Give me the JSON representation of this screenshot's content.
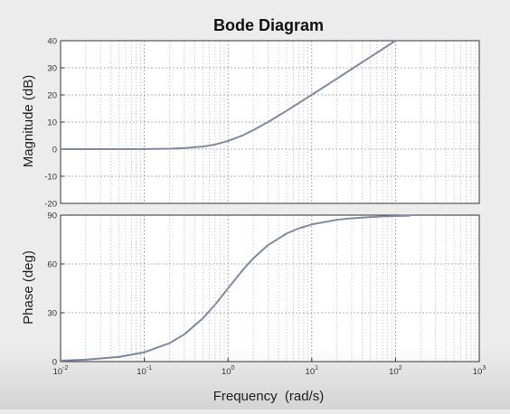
{
  "chart_data": [
    {
      "type": "line",
      "title": "Bode Diagram",
      "xlabel": "",
      "ylabel": "Magnitude (dB)",
      "xscale": "log",
      "xlim": [
        0.01,
        1000
      ],
      "ylim": [
        -20,
        40
      ],
      "yticks": [
        -20,
        -10,
        0,
        10,
        20,
        30,
        40
      ],
      "grid": true,
      "series": [
        {
          "color": "#7e8aa6",
          "x": [
            0.01,
            0.02,
            0.05,
            0.1,
            0.2,
            0.3,
            0.5,
            0.7,
            1,
            1.5,
            2,
            3,
            5,
            7,
            10,
            20,
            30,
            50,
            70,
            100
          ],
          "y": [
            0.0,
            0.0,
            0.01,
            0.04,
            0.17,
            0.37,
            0.97,
            1.72,
            3.01,
            5.12,
            6.99,
            10.0,
            14.15,
            17.03,
            20.04,
            26.03,
            29.55,
            33.98,
            36.9,
            40.0
          ]
        }
      ]
    },
    {
      "type": "line",
      "title": "",
      "xlabel": "Frequency  (rad/s)",
      "ylabel": "Phase (deg)",
      "xscale": "log",
      "xlim": [
        0.01,
        1000
      ],
      "ylim": [
        0,
        90
      ],
      "yticks": [
        0,
        30,
        60,
        90
      ],
      "xticks": [
        "10^-2",
        "10^-1",
        "10^0",
        "10^1",
        "10^2",
        "10^3"
      ],
      "grid": true,
      "series": [
        {
          "color": "#7e8aa6",
          "x": [
            0.01,
            0.02,
            0.05,
            0.1,
            0.2,
            0.3,
            0.5,
            0.7,
            1,
            1.5,
            2,
            3,
            5,
            7,
            10,
            20,
            30,
            50,
            70,
            100,
            150
          ],
          "y": [
            0.57,
            1.15,
            2.86,
            5.71,
            11.31,
            16.7,
            26.57,
            34.99,
            45.0,
            56.31,
            63.43,
            71.57,
            78.69,
            81.87,
            84.29,
            87.14,
            88.09,
            88.85,
            89.18,
            89.43,
            89.62
          ]
        }
      ]
    }
  ]
}
